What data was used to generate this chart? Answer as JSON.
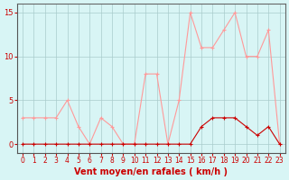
{
  "x": [
    0,
    1,
    2,
    3,
    4,
    5,
    6,
    7,
    8,
    9,
    10,
    11,
    12,
    13,
    14,
    15,
    16,
    17,
    18,
    19,
    20,
    21,
    22,
    23
  ],
  "y_rafales": [
    3,
    3,
    3,
    3,
    5,
    2,
    0,
    3,
    2,
    0,
    0,
    8,
    8,
    0,
    5,
    15,
    11,
    11,
    13,
    15,
    10,
    10,
    13,
    0
  ],
  "y_moyen": [
    0,
    0,
    0,
    0,
    0,
    0,
    0,
    0,
    0,
    0,
    0,
    0,
    0,
    0,
    0,
    0,
    2,
    3,
    3,
    3,
    2,
    1,
    2,
    0
  ],
  "line_color_rafales": "#ff9999",
  "line_color_moyen": "#cc0000",
  "bg_color": "#d8f5f5",
  "grid_color": "#aacccc",
  "axis_color": "#666666",
  "text_color": "#cc0000",
  "xlabel": "Vent moyen/en rafales ( km/h )",
  "ylim": [
    -1,
    16
  ],
  "yticks": [
    0,
    5,
    10,
    15
  ],
  "xlim": [
    -0.5,
    23.5
  ]
}
